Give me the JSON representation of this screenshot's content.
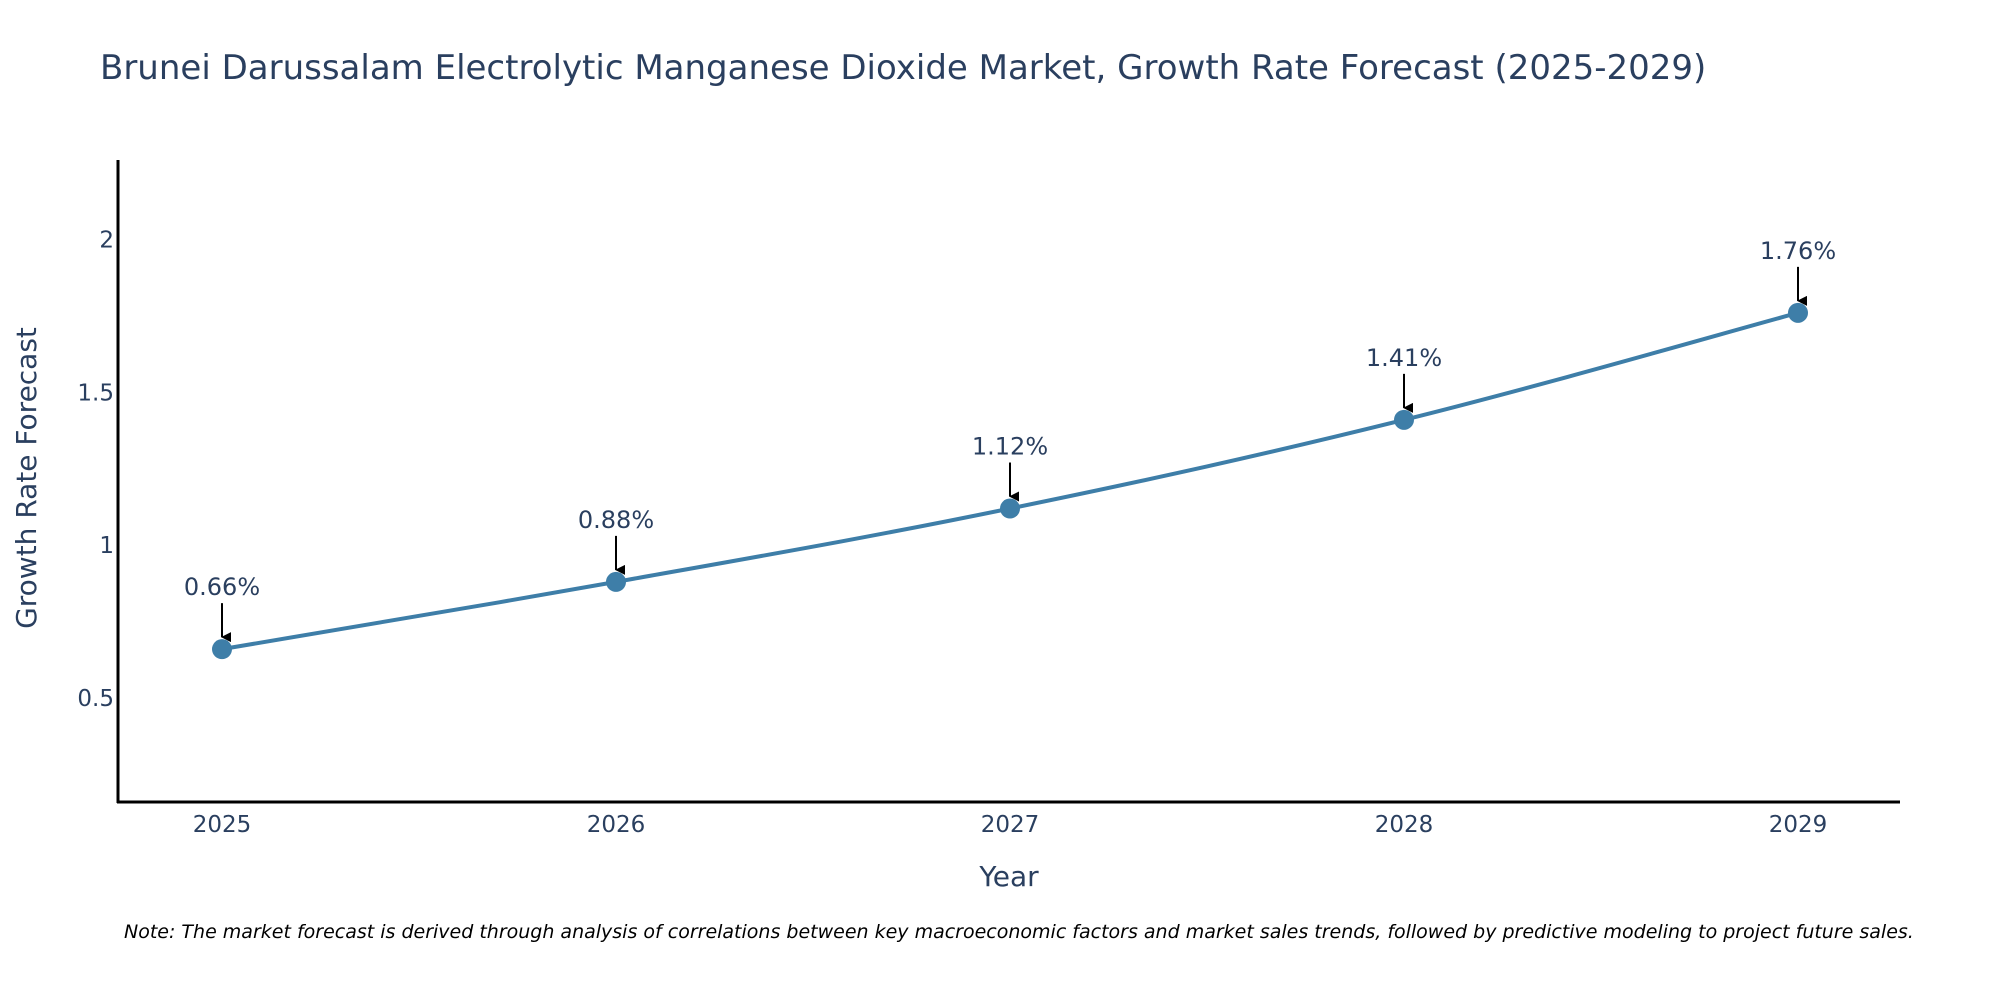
{
  "chart_data": {
    "type": "line",
    "title": "Brunei Darussalam Electrolytic Manganese Dioxide Market, Growth Rate Forecast (2025-2029)",
    "xlabel": "Year",
    "ylabel": "Growth Rate Forecast",
    "categories": [
      "2025",
      "2026",
      "2027",
      "2028",
      "2029"
    ],
    "series": [
      {
        "name": "Growth Rate Forecast",
        "values": [
          0.66,
          0.88,
          1.12,
          1.41,
          1.76
        ],
        "labels": [
          "0.66%",
          "0.88%",
          "1.12%",
          "1.41%",
          "1.76%"
        ]
      }
    ],
    "y_ticks": [
      {
        "value": 0.5,
        "label": "0.5"
      },
      {
        "value": 1,
        "label": "1"
      },
      {
        "value": 1.5,
        "label": "1.5"
      },
      {
        "value": 2,
        "label": "2"
      }
    ],
    "ylim": [
      0.16,
      2.26
    ],
    "grid": false,
    "line_color": "#3e7ea8",
    "marker_color": "#3e7ea8",
    "arrow_color": "#000000",
    "note": "Note: The market forecast is derived through analysis of correlations between key macroeconomic factors and market sales trends, followed by predictive modeling to project future sales."
  }
}
